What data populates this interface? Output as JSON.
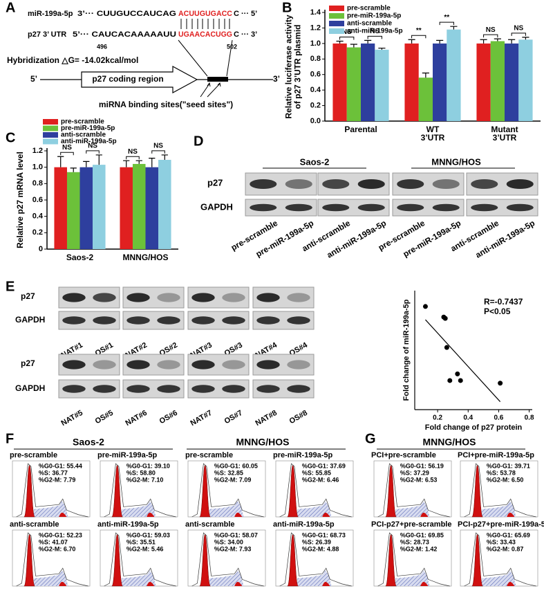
{
  "panel_labels": [
    "A",
    "B",
    "C",
    "D",
    "E",
    "F",
    "G"
  ],
  "panel_a": {
    "mirna_name": "miR-199a-5p",
    "mirna_seq": [
      "3’··· CUUGUCCAUCAG",
      "ACUUGUGACC",
      "C ··· 5’"
    ],
    "utr_name": "p27 3’ UTR",
    "utr_seq": [
      "5’··· CAUCACAAAAAUU",
      "UGAACACUGG",
      "C ··· 3’"
    ],
    "start_pos": "496",
    "end_pos": "502",
    "hybridization": "Hybridization △G= -14.02kcal/mol",
    "five_prime": "5’",
    "coding_region": "p27 coding region",
    "three_prime": "3’",
    "binding_sites": "miRNA binding sites(\"seed sites\")"
  },
  "chart_data": [
    {
      "type": "bar",
      "ylabel": [
        "Relative luciferase activity",
        "of p27 3’UTR plasmid"
      ],
      "categories": [
        [
          "Parental"
        ],
        [
          "WT",
          "3’UTR"
        ],
        [
          "Mutant",
          "3’UTR"
        ]
      ],
      "series": [
        {
          "name": "pre-scramble",
          "color": "#e02020",
          "values": [
            1.0,
            1.0,
            1.0
          ],
          "errors": [
            0.03,
            0.05,
            0.05
          ]
        },
        {
          "name": "pre-miR-199a-5p",
          "color": "#6cc13a",
          "values": [
            0.95,
            0.56,
            1.03
          ],
          "errors": [
            0.04,
            0.06,
            0.03
          ]
        },
        {
          "name": "anti-scramble",
          "color": "#2e3f9e",
          "values": [
            1.0,
            1.0,
            1.0
          ],
          "errors": [
            0.04,
            0.04,
            0.05
          ]
        },
        {
          "name": "anti-miR-199a-5p",
          "color": "#8ecfe0",
          "values": [
            0.92,
            1.18,
            1.05
          ],
          "errors": [
            0.02,
            0.04,
            0.03
          ]
        }
      ],
      "significance": [
        [
          "NS",
          "NS"
        ],
        [
          "**",
          "**"
        ],
        [
          "NS",
          "NS"
        ]
      ],
      "ylim": [
        0,
        1.4
      ],
      "yticks": [
        {
          "value": 0,
          "label": "0.0"
        },
        0.2,
        0.4,
        0.6,
        0.8,
        {
          "value": 1,
          "label": "1.0"
        },
        1.2,
        1.4
      ]
    },
    {
      "type": "bar",
      "ylabel": [
        "Relative p27 mRNA level"
      ],
      "categories": [
        [
          "Saos-2"
        ],
        [
          "MNNG/HOS"
        ]
      ],
      "series": [
        {
          "name": "pre-scramble",
          "color": "#e02020",
          "values": [
            1.0,
            1.0
          ],
          "errors": [
            0.13,
            0.08
          ]
        },
        {
          "name": "pre-miR-199a-5p",
          "color": "#6cc13a",
          "values": [
            0.94,
            1.04
          ],
          "errors": [
            0.05,
            0.04
          ]
        },
        {
          "name": "anti-scramble",
          "color": "#2e3f9e",
          "values": [
            1.0,
            1.0
          ],
          "errors": [
            0.07,
            0.11
          ]
        },
        {
          "name": "anti-miR-199a-5p",
          "color": "#8ecfe0",
          "values": [
            1.03,
            1.09
          ],
          "errors": [
            0.12,
            0.06
          ]
        }
      ],
      "significance": [
        [
          "NS",
          "NS"
        ],
        [
          "NS",
          "NS"
        ]
      ],
      "ylim": [
        0,
        1.2
      ],
      "yticks": [
        0,
        0.2,
        0.4,
        0.6,
        0.8,
        {
          "value": 1,
          "label": "1.0"
        },
        1.2
      ]
    },
    {
      "type": "scatter",
      "xlabel": "Fold change of p27 protein",
      "ylabel": "Fold change of miR-199a-5p",
      "x": [
        0.12,
        0.24,
        0.25,
        0.26,
        0.33,
        0.28,
        0.35,
        0.61
      ],
      "values": [
        4.9,
        4.5,
        4.45,
        3.35,
        2.35,
        2.1,
        2.1,
        2.0
      ],
      "trendline": {
        "x": [
          0.12,
          0.61
        ],
        "values": [
          4.4,
          1.3
        ]
      },
      "annotations": [
        "R=-0.7437",
        "P<0.05"
      ],
      "color": "#000000",
      "xlim": [
        0.05,
        0.82
      ],
      "xticks": [
        0.2,
        0.4,
        0.6,
        0.8
      ],
      "ylim": [
        1,
        5.5
      ]
    }
  ],
  "panel_d": {
    "groups": [
      "Saos-2",
      "MNNG/HOS"
    ],
    "rows": [
      "p27",
      "GAPDH"
    ],
    "lanes": [
      "pre-scramble",
      "pre-miR-199a-5p",
      "anti-scramble",
      "anti-miR-199a-5p",
      "pre-scramble",
      "pre-miR-199a-5p",
      "anti-scramble",
      "anti-miR-199a-5p"
    ]
  },
  "panel_e": {
    "rows": [
      "p27",
      "GAPDH"
    ],
    "lanes": [
      "NAT#1",
      "OS#1",
      "NAT#2",
      "OS#2",
      "NAT#3",
      "OS#3",
      "NAT#4",
      "OS#4",
      "NAT#5",
      "OS#5",
      "NAT#6",
      "OS#6",
      "NAT#7",
      "OS#7",
      "NAT#8",
      "OS#8"
    ]
  },
  "panel_f": {
    "groups": [
      "Saos-2",
      "MNNG/HOS"
    ],
    "plots": [
      {
        "title": "pre-scramble",
        "stats": [
          "%G0-G1: 55.44",
          "%S: 36.77",
          "%G2-M: 7.79"
        ]
      },
      {
        "title": "pre-miR-199a-5p",
        "stats": [
          "%G0-G1: 39.10",
          "%S: 58.80",
          "%G2-M: 7.10"
        ]
      },
      {
        "title": "pre-scramble",
        "stats": [
          "%G0-G1: 60.05",
          "%S: 32.85",
          "%G2-M: 7.09"
        ]
      },
      {
        "title": "pre-miR-199a-5p",
        "stats": [
          "%G0-G1: 37.69",
          "%S: 55.85",
          "%G2-M: 6.46"
        ]
      },
      {
        "title": "anti-scramble",
        "stats": [
          "%G0-G1: 52.23",
          "%S: 41.07",
          "%G2-M: 6.70"
        ]
      },
      {
        "title": "anti-miR-199a-5p",
        "stats": [
          "%G0-G1: 59.03",
          "%S: 35.51",
          "%G2-M: 5.46"
        ]
      },
      {
        "title": "anti-scramble",
        "stats": [
          "%G0-G1: 58.07",
          "%S: 34.00",
          "%G2-M: 7.93"
        ]
      },
      {
        "title": "anti-miR-199a-5p",
        "stats": [
          "%G0-G1: 68.73",
          "%S: 26.39",
          "%G2-M: 4.88"
        ]
      }
    ]
  },
  "panel_g": {
    "title": "MNNG/HOS",
    "plots": [
      {
        "title": "PCI+pre-scramble",
        "stats": [
          "%G0-G1: 56.19",
          "%S: 37.29",
          "%G2-M: 6.53"
        ]
      },
      {
        "title": "PCI+pre-miR-199a-5p",
        "stats": [
          "%G0-G1: 39.71",
          "%S: 53.78",
          "%G2-M: 6.50"
        ]
      },
      {
        "title": "PCI-p27+pre-scramble",
        "stats": [
          "%G0-G1: 69.85",
          "%S: 28.73",
          "%G2-M: 1.42"
        ]
      },
      {
        "title": "PCI-p27+pre-miR-199a-5p",
        "stats": [
          "%G0-G1: 65.69",
          "%S: 33.43",
          "%G2-M: 0.87"
        ]
      }
    ]
  }
}
